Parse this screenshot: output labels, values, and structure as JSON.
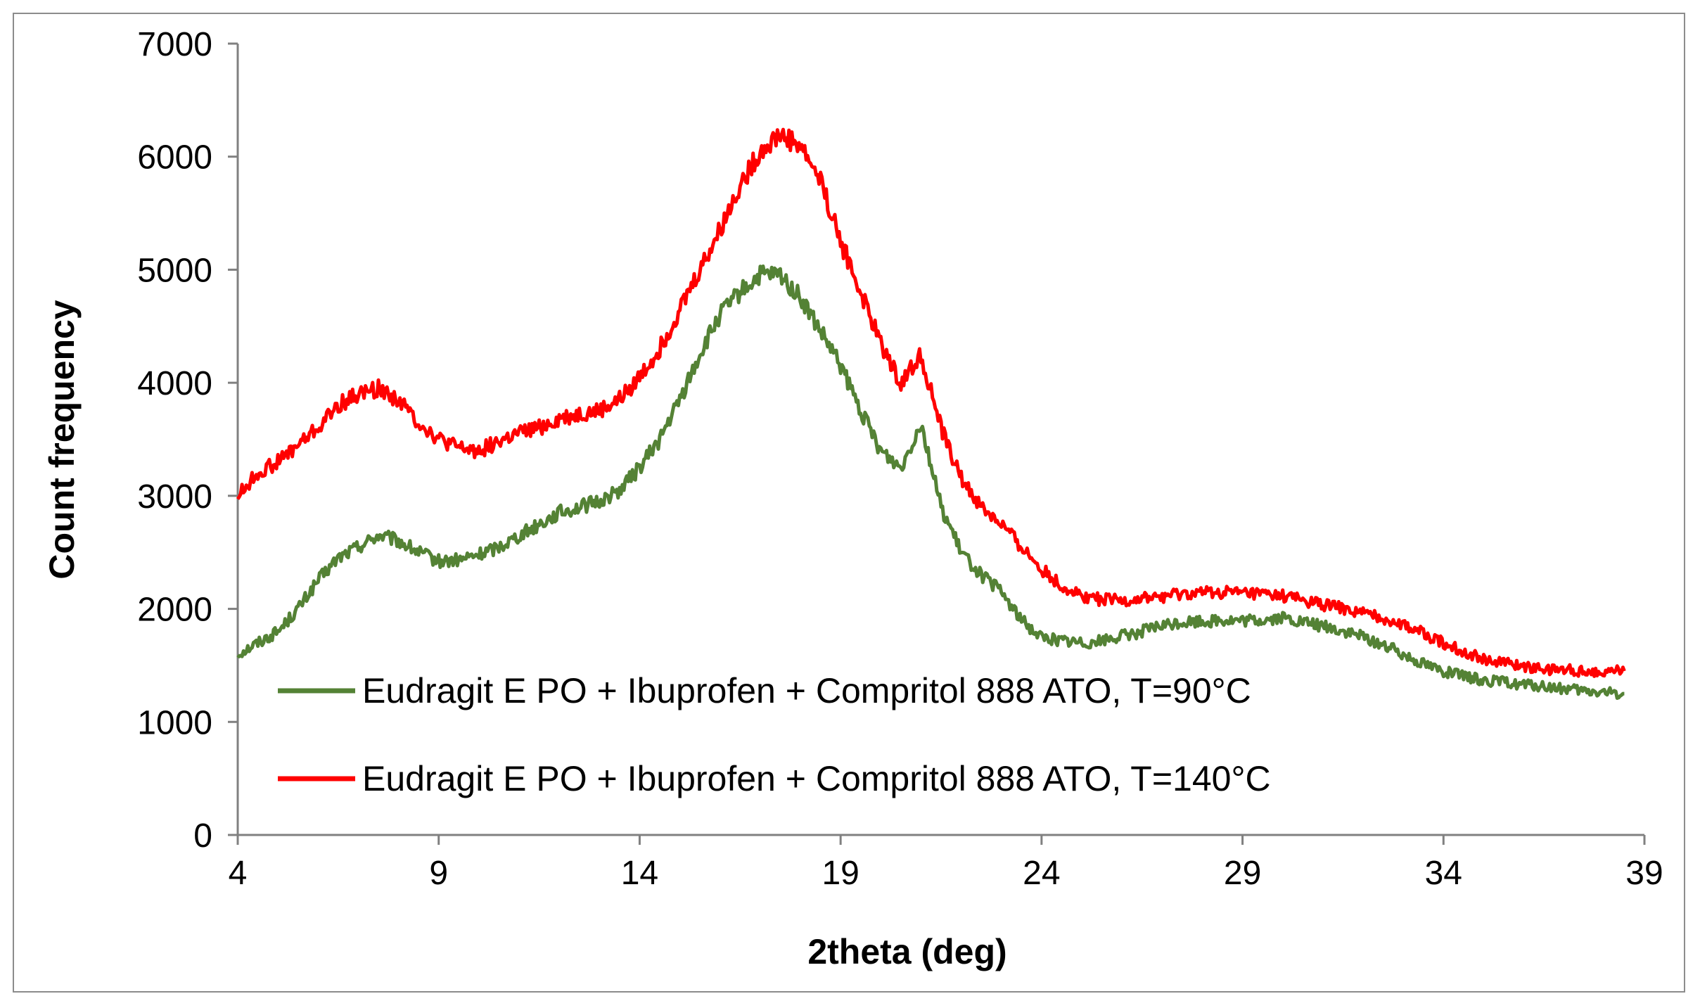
{
  "chart_data": {
    "type": "line",
    "title": "",
    "xlabel": "2theta (deg)",
    "ylabel": "Count frequency",
    "xlim": [
      4,
      39
    ],
    "ylim": [
      0,
      7000
    ],
    "x_ticks": [
      4,
      9,
      14,
      19,
      24,
      29,
      34,
      39
    ],
    "y_ticks": [
      0,
      1000,
      2000,
      3000,
      4000,
      5000,
      6000,
      7000
    ],
    "grid": false,
    "legend_position": "bottom-left inside",
    "series": [
      {
        "name": "Eudragit E PO + Ibuprofen +  Compritol 888 ATO, T=90°C",
        "color": "#548235",
        "x": [
          4,
          4.5,
          5,
          5.5,
          6,
          6.5,
          7,
          7.5,
          8,
          8.5,
          9,
          9.5,
          10,
          10.5,
          11,
          11.5,
          12,
          12.5,
          13,
          13.5,
          14,
          14.5,
          15,
          15.5,
          16,
          16.5,
          17,
          17.5,
          18,
          18.5,
          19,
          19.5,
          20,
          20.5,
          21,
          21.5,
          22,
          22.5,
          23,
          23.5,
          24,
          24.5,
          25,
          25.5,
          26,
          26.5,
          27,
          27.5,
          28,
          28.5,
          29,
          29.5,
          30,
          30.5,
          31,
          31.5,
          32,
          32.5,
          33,
          33.5,
          34,
          34.5,
          35,
          35.5,
          36,
          36.5,
          37,
          37.5,
          38,
          38.5
        ],
        "values": [
          1600,
          1700,
          1800,
          2000,
          2250,
          2450,
          2550,
          2650,
          2600,
          2500,
          2420,
          2430,
          2480,
          2550,
          2650,
          2750,
          2850,
          2900,
          2950,
          3050,
          3250,
          3500,
          3850,
          4250,
          4600,
          4800,
          4950,
          4950,
          4750,
          4450,
          4150,
          3750,
          3400,
          3250,
          3650,
          2900,
          2500,
          2300,
          2150,
          1900,
          1750,
          1720,
          1700,
          1720,
          1760,
          1800,
          1850,
          1880,
          1890,
          1900,
          1890,
          1900,
          1920,
          1880,
          1850,
          1800,
          1750,
          1680,
          1600,
          1520,
          1450,
          1400,
          1370,
          1350,
          1330,
          1310,
          1290,
          1270,
          1260,
          1250
        ]
      },
      {
        "name": "Eudragit E PO + Ibuprofen +  Compritol 888 ATO, T=140°C",
        "color": "#ff0000",
        "x": [
          4,
          4.5,
          5,
          5.5,
          6,
          6.5,
          7,
          7.5,
          8,
          8.5,
          9,
          9.5,
          10,
          10.5,
          11,
          11.5,
          12,
          12.5,
          13,
          13.5,
          14,
          14.5,
          15,
          15.5,
          16,
          16.5,
          17,
          17.5,
          18,
          18.5,
          19,
          19.5,
          20,
          20.5,
          21,
          21.5,
          22,
          22.5,
          23,
          23.5,
          24,
          24.5,
          25,
          25.5,
          26,
          26.5,
          27,
          27.5,
          28,
          28.5,
          29,
          29.5,
          30,
          30.5,
          31,
          31.5,
          32,
          32.5,
          33,
          33.5,
          34,
          34.5,
          35,
          35.5,
          36,
          36.5,
          37,
          37.5,
          38,
          38.5
        ],
        "values": [
          3000,
          3200,
          3300,
          3450,
          3600,
          3800,
          3900,
          3950,
          3850,
          3650,
          3500,
          3420,
          3400,
          3480,
          3550,
          3600,
          3680,
          3720,
          3750,
          3850,
          4050,
          4300,
          4650,
          5000,
          5350,
          5750,
          6050,
          6200,
          6100,
          5800,
          5250,
          4800,
          4350,
          4000,
          4250,
          3600,
          3150,
          2900,
          2750,
          2550,
          2350,
          2200,
          2120,
          2080,
          2070,
          2090,
          2110,
          2130,
          2140,
          2150,
          2140,
          2130,
          2110,
          2080,
          2040,
          2000,
          1960,
          1920,
          1860,
          1780,
          1700,
          1620,
          1560,
          1520,
          1490,
          1470,
          1460,
          1450,
          1450,
          1450
        ]
      }
    ]
  }
}
